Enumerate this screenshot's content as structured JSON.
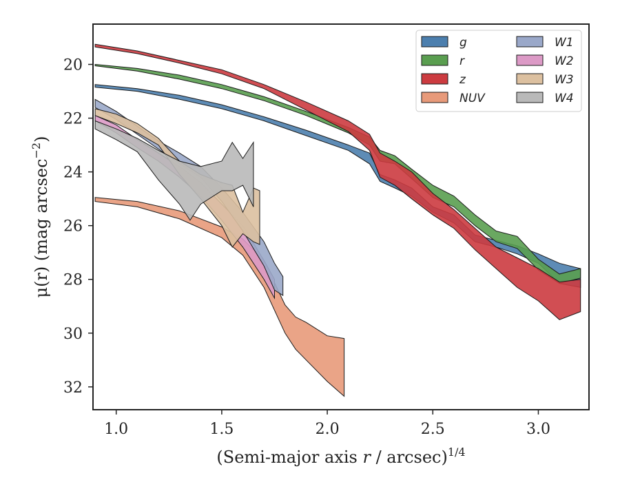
{
  "chart_data": {
    "type": "area",
    "title": "",
    "xlabel": "(Semi-major axis r / arcsec)^1/4",
    "ylabel": "μ(r) (mag arcsec^−2)",
    "xlim": [
      0.89,
      3.24
    ],
    "ylim": [
      32.85,
      18.5
    ],
    "y_inverted": true,
    "xticks": [
      "1.0",
      "1.5",
      "2.0",
      "2.5",
      "3.0"
    ],
    "xtick_values": [
      1.0,
      1.5,
      2.0,
      2.5,
      3.0
    ],
    "yticks": [
      "20",
      "22",
      "24",
      "26",
      "28",
      "30",
      "32"
    ],
    "ytick_values": [
      20,
      22,
      24,
      26,
      28,
      30,
      32
    ],
    "grid": false,
    "legend_position": "top-right",
    "legend_columns": 2,
    "series": [
      {
        "name": "g",
        "color": "#4c7fae",
        "upper": [
          [
            0.9,
            20.75
          ],
          [
            1.1,
            20.9
          ],
          [
            1.3,
            21.15
          ],
          [
            1.5,
            21.5
          ],
          [
            1.7,
            21.95
          ],
          [
            1.9,
            22.45
          ],
          [
            2.1,
            23.0
          ],
          [
            2.2,
            23.3
          ],
          [
            2.25,
            24.1
          ],
          [
            2.32,
            24.3
          ],
          [
            2.4,
            24.6
          ],
          [
            2.5,
            25.3
          ],
          [
            2.6,
            25.6
          ],
          [
            2.7,
            26.35
          ],
          [
            2.8,
            26.55
          ],
          [
            2.9,
            26.75
          ],
          [
            3.0,
            27.05
          ],
          [
            3.1,
            27.4
          ],
          [
            3.2,
            27.6
          ]
        ],
        "lower": [
          [
            0.9,
            20.85
          ],
          [
            1.1,
            21.0
          ],
          [
            1.3,
            21.3
          ],
          [
            1.5,
            21.65
          ],
          [
            1.7,
            22.1
          ],
          [
            1.9,
            22.65
          ],
          [
            2.1,
            23.2
          ],
          [
            2.2,
            23.7
          ],
          [
            2.25,
            24.35
          ],
          [
            2.32,
            24.6
          ],
          [
            2.4,
            24.9
          ],
          [
            2.5,
            25.5
          ],
          [
            2.6,
            25.9
          ],
          [
            2.7,
            26.6
          ],
          [
            2.8,
            26.8
          ],
          [
            2.9,
            27.05
          ],
          [
            3.0,
            27.4
          ],
          [
            3.1,
            28.15
          ],
          [
            3.2,
            28.3
          ]
        ]
      },
      {
        "name": "r",
        "color": "#5a9e50",
        "upper": [
          [
            0.9,
            20.0
          ],
          [
            1.1,
            20.15
          ],
          [
            1.3,
            20.4
          ],
          [
            1.5,
            20.75
          ],
          [
            1.7,
            21.2
          ],
          [
            1.9,
            21.75
          ],
          [
            2.1,
            22.35
          ],
          [
            2.2,
            22.7
          ],
          [
            2.25,
            23.2
          ],
          [
            2.32,
            23.4
          ],
          [
            2.4,
            23.9
          ],
          [
            2.5,
            24.5
          ],
          [
            2.6,
            24.9
          ],
          [
            2.7,
            25.6
          ],
          [
            2.8,
            26.2
          ],
          [
            2.9,
            26.4
          ],
          [
            3.0,
            27.25
          ],
          [
            3.1,
            27.8
          ],
          [
            3.2,
            27.6
          ]
        ],
        "lower": [
          [
            0.9,
            20.05
          ],
          [
            1.1,
            20.25
          ],
          [
            1.3,
            20.55
          ],
          [
            1.5,
            20.9
          ],
          [
            1.7,
            21.35
          ],
          [
            1.9,
            21.9
          ],
          [
            2.1,
            22.55
          ],
          [
            2.2,
            23.0
          ],
          [
            2.25,
            23.6
          ],
          [
            2.32,
            23.7
          ],
          [
            2.4,
            24.25
          ],
          [
            2.5,
            24.95
          ],
          [
            2.6,
            25.3
          ],
          [
            2.7,
            26.0
          ],
          [
            2.8,
            26.6
          ],
          [
            2.9,
            26.85
          ],
          [
            3.0,
            27.65
          ],
          [
            3.1,
            28.15
          ],
          [
            3.2,
            27.95
          ]
        ]
      },
      {
        "name": "z",
        "color": "#cc3b40",
        "upper": [
          [
            0.9,
            19.25
          ],
          [
            1.1,
            19.5
          ],
          [
            1.3,
            19.85
          ],
          [
            1.5,
            20.2
          ],
          [
            1.7,
            20.75
          ],
          [
            1.9,
            21.4
          ],
          [
            2.1,
            22.1
          ],
          [
            2.2,
            22.6
          ],
          [
            2.25,
            23.3
          ],
          [
            2.32,
            23.6
          ],
          [
            2.4,
            24.0
          ],
          [
            2.5,
            24.8
          ],
          [
            2.6,
            25.4
          ],
          [
            2.7,
            26.1
          ],
          [
            2.8,
            26.8
          ],
          [
            2.9,
            27.2
          ],
          [
            3.0,
            27.6
          ],
          [
            3.1,
            28.1
          ],
          [
            3.2,
            28.0
          ]
        ],
        "lower": [
          [
            0.9,
            19.35
          ],
          [
            1.1,
            19.6
          ],
          [
            1.3,
            19.95
          ],
          [
            1.5,
            20.35
          ],
          [
            1.7,
            20.9
          ],
          [
            1.9,
            21.7
          ],
          [
            2.1,
            22.5
          ],
          [
            2.2,
            23.2
          ],
          [
            2.25,
            24.2
          ],
          [
            2.32,
            24.5
          ],
          [
            2.4,
            25.0
          ],
          [
            2.5,
            25.6
          ],
          [
            2.6,
            26.1
          ],
          [
            2.7,
            26.9
          ],
          [
            2.8,
            27.6
          ],
          [
            2.9,
            28.3
          ],
          [
            3.0,
            28.8
          ],
          [
            3.1,
            29.5
          ],
          [
            3.2,
            29.2
          ]
        ]
      },
      {
        "name": "NUV",
        "color": "#e89a7a",
        "upper": [
          [
            0.9,
            24.95
          ],
          [
            1.1,
            25.1
          ],
          [
            1.3,
            25.45
          ],
          [
            1.5,
            26.05
          ],
          [
            1.6,
            26.5
          ],
          [
            1.7,
            27.3
          ],
          [
            1.8,
            28.95
          ],
          [
            1.85,
            29.4
          ],
          [
            1.9,
            29.6
          ],
          [
            2.0,
            30.1
          ],
          [
            2.08,
            30.2
          ]
        ],
        "lower": [
          [
            0.9,
            25.1
          ],
          [
            1.1,
            25.3
          ],
          [
            1.3,
            25.75
          ],
          [
            1.5,
            26.45
          ],
          [
            1.6,
            27.1
          ],
          [
            1.7,
            28.3
          ],
          [
            1.8,
            30.0
          ],
          [
            1.85,
            30.6
          ],
          [
            1.9,
            31.0
          ],
          [
            2.0,
            31.8
          ],
          [
            2.08,
            32.35
          ]
        ]
      },
      {
        "name": "W1",
        "color": "#9aa8c9",
        "upper": [
          [
            0.9,
            21.3
          ],
          [
            1.0,
            21.75
          ],
          [
            1.1,
            22.3
          ],
          [
            1.2,
            22.85
          ],
          [
            1.3,
            23.3
          ],
          [
            1.4,
            23.8
          ],
          [
            1.5,
            24.6
          ],
          [
            1.6,
            25.5
          ],
          [
            1.7,
            26.6
          ],
          [
            1.75,
            27.4
          ],
          [
            1.79,
            27.9
          ]
        ],
        "lower": [
          [
            0.9,
            21.6
          ],
          [
            1.0,
            22.05
          ],
          [
            1.1,
            22.6
          ],
          [
            1.2,
            23.15
          ],
          [
            1.3,
            23.7
          ],
          [
            1.4,
            24.2
          ],
          [
            1.5,
            25.1
          ],
          [
            1.6,
            26.2
          ],
          [
            1.7,
            27.5
          ],
          [
            1.75,
            28.4
          ],
          [
            1.79,
            28.6
          ]
        ]
      },
      {
        "name": "W2",
        "color": "#dc9ac6",
        "upper": [
          [
            0.9,
            21.9
          ],
          [
            1.0,
            22.25
          ],
          [
            1.1,
            22.8
          ],
          [
            1.2,
            23.3
          ],
          [
            1.3,
            23.8
          ],
          [
            1.4,
            24.4
          ],
          [
            1.5,
            25.2
          ],
          [
            1.6,
            26.0
          ],
          [
            1.7,
            27.3
          ],
          [
            1.75,
            28.0
          ]
        ],
        "lower": [
          [
            0.9,
            22.1
          ],
          [
            1.0,
            22.55
          ],
          [
            1.1,
            23.1
          ],
          [
            1.2,
            23.6
          ],
          [
            1.3,
            24.2
          ],
          [
            1.4,
            24.9
          ],
          [
            1.5,
            25.8
          ],
          [
            1.6,
            26.8
          ],
          [
            1.7,
            28.0
          ],
          [
            1.75,
            28.7
          ]
        ]
      },
      {
        "name": "W3",
        "color": "#dcc0a0",
        "upper": [
          [
            0.9,
            21.65
          ],
          [
            1.0,
            21.85
          ],
          [
            1.1,
            22.2
          ],
          [
            1.2,
            22.75
          ],
          [
            1.3,
            23.6
          ],
          [
            1.4,
            24.1
          ],
          [
            1.5,
            24.4
          ],
          [
            1.55,
            24.5
          ],
          [
            1.6,
            25.5
          ],
          [
            1.65,
            24.6
          ],
          [
            1.68,
            24.7
          ]
        ],
        "lower": [
          [
            0.9,
            21.9
          ],
          [
            1.0,
            22.2
          ],
          [
            1.1,
            22.55
          ],
          [
            1.2,
            23.0
          ],
          [
            1.3,
            24.1
          ],
          [
            1.4,
            25.0
          ],
          [
            1.5,
            26.0
          ],
          [
            1.55,
            26.8
          ],
          [
            1.6,
            26.3
          ],
          [
            1.65,
            26.6
          ],
          [
            1.68,
            26.7
          ]
        ]
      },
      {
        "name": "W4",
        "color": "#b9b9b9",
        "upper": [
          [
            0.9,
            22.1
          ],
          [
            1.0,
            22.4
          ],
          [
            1.1,
            22.75
          ],
          [
            1.2,
            23.2
          ],
          [
            1.3,
            23.6
          ],
          [
            1.4,
            23.8
          ],
          [
            1.5,
            23.6
          ],
          [
            1.55,
            22.9
          ],
          [
            1.6,
            23.5
          ],
          [
            1.65,
            22.9
          ]
        ],
        "lower": [
          [
            0.9,
            22.4
          ],
          [
            1.0,
            22.8
          ],
          [
            1.1,
            23.25
          ],
          [
            1.2,
            24.3
          ],
          [
            1.3,
            25.2
          ],
          [
            1.35,
            25.8
          ],
          [
            1.4,
            25.2
          ],
          [
            1.5,
            24.7
          ],
          [
            1.55,
            24.7
          ],
          [
            1.6,
            24.5
          ],
          [
            1.65,
            25.3
          ]
        ]
      }
    ]
  }
}
